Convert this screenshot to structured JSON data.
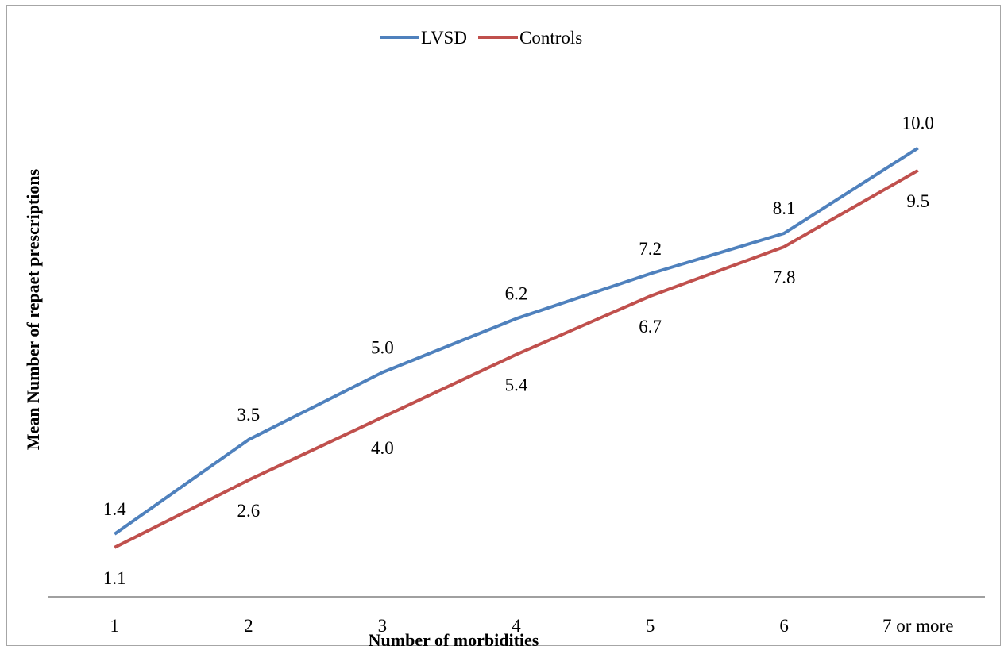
{
  "chart_data": {
    "type": "line",
    "title": "",
    "xlabel": "Number of morbidities",
    "ylabel": "Mean Number of repaet prescriptions",
    "categories": [
      "1",
      "2",
      "3",
      "4",
      "5",
      "6",
      "7 or more"
    ],
    "series": [
      {
        "name": "LVSD",
        "color": "#4f81bd",
        "values": [
          1.4,
          3.5,
          5.0,
          6.2,
          7.2,
          8.1,
          10.0
        ],
        "labels": [
          "1.4",
          "3.5",
          "5.0",
          "6.2",
          "7.2",
          "8.1",
          "10.0"
        ]
      },
      {
        "name": "Controls",
        "color": "#c0504d",
        "values": [
          1.1,
          2.6,
          4.0,
          5.4,
          6.7,
          7.8,
          9.5
        ],
        "labels": [
          "1.1",
          "2.6",
          "4.0",
          "5.4",
          "6.7",
          "7.8",
          "9.5"
        ]
      }
    ],
    "ylim": [
      0.0,
      11.0
    ],
    "grid": false,
    "legend_position": "top-center"
  }
}
